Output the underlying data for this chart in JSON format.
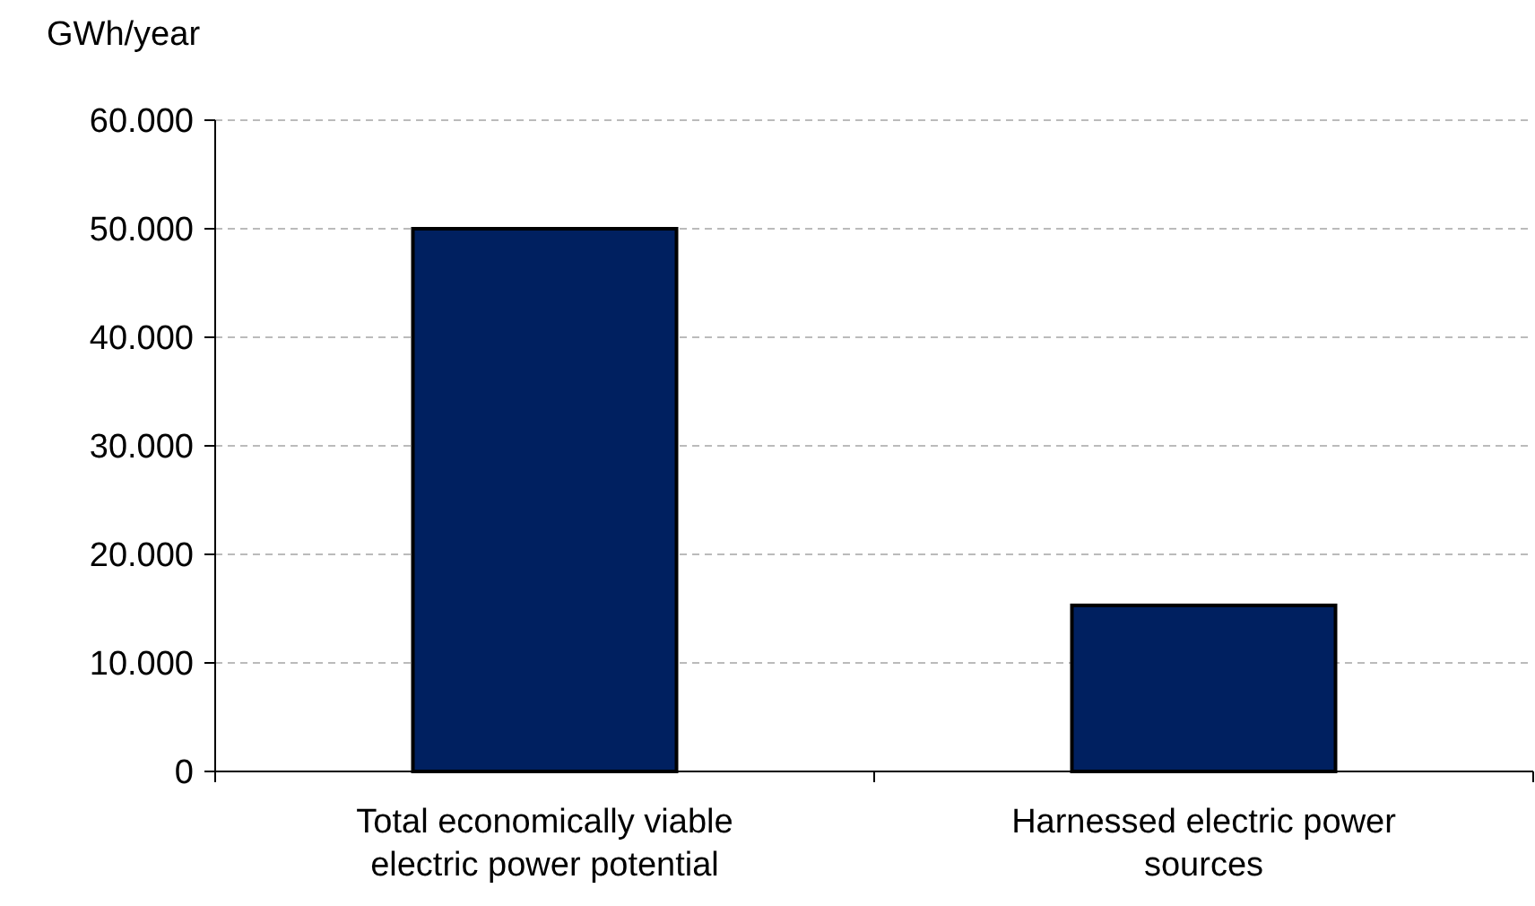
{
  "chart_data": {
    "type": "bar",
    "ylabel": "GWh/year",
    "categories": [
      "Total economically viable electric power potential",
      "Harnessed electric power sources"
    ],
    "values": [
      50000,
      15300
    ],
    "color": "#002060",
    "ylim": [
      0,
      60000
    ],
    "yticks": [
      0,
      {
        "value": 10000,
        "label": "10.000"
      },
      {
        "value": 20000,
        "label": "20.000"
      },
      {
        "value": 30000,
        "label": "30.000"
      },
      {
        "value": 40000,
        "label": "40.000"
      },
      {
        "value": 50000,
        "label": "50.000"
      },
      {
        "value": 60000,
        "label": "60.000"
      }
    ],
    "grid": "y"
  }
}
